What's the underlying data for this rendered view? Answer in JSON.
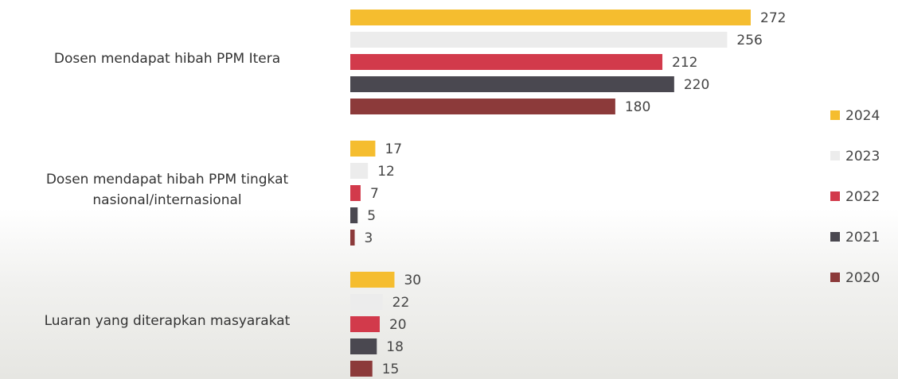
{
  "chart_data": {
    "type": "hbar",
    "categories": [
      "Dosen mendapat hibah PPM Itera",
      "Dosen mendapat hibah PPM tingkat nasional/internasional",
      "Luaran yang diterapkan masyarakat"
    ],
    "series": [
      {
        "name": "2024",
        "color": "#f5bd2f",
        "values": [
          272,
          17,
          30
        ]
      },
      {
        "name": "2023",
        "color": "#ececec",
        "values": [
          256,
          12,
          22
        ]
      },
      {
        "name": "2022",
        "color": "#d23a4b",
        "values": [
          212,
          7,
          20
        ]
      },
      {
        "name": "2021",
        "color": "#4a4850",
        "values": [
          220,
          5,
          18
        ]
      },
      {
        "name": "2020",
        "color": "#8c3a3a",
        "values": [
          180,
          3,
          15
        ]
      }
    ],
    "legend": "right"
  }
}
